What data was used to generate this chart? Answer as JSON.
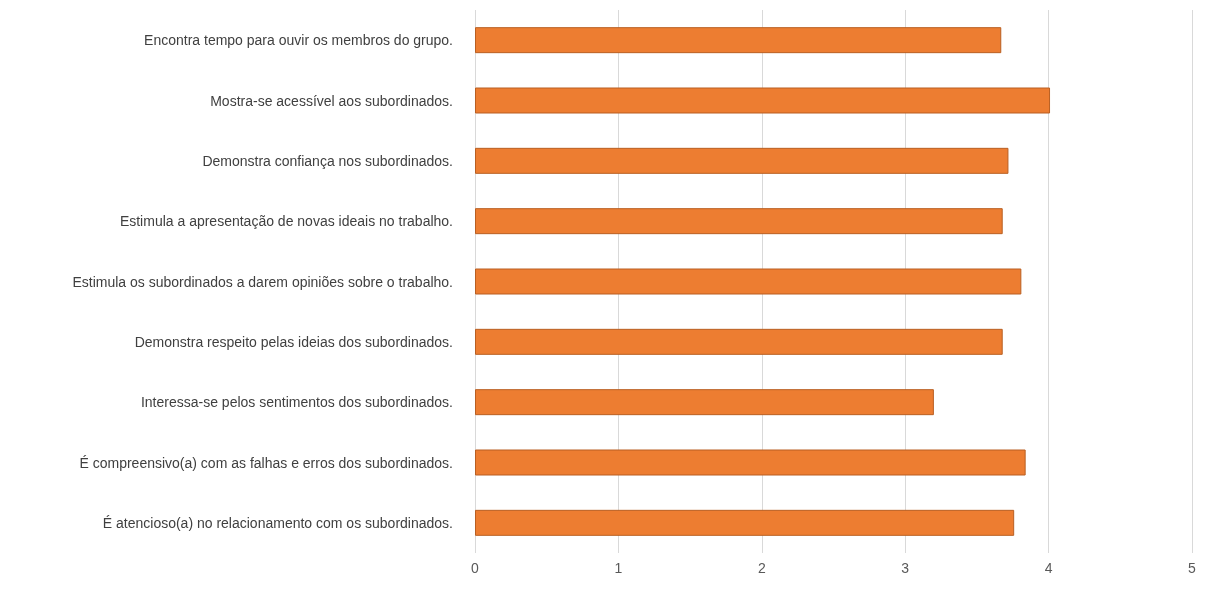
{
  "chart_data": {
    "type": "bar",
    "orientation": "horizontal",
    "categories": [
      "Encontra tempo para ouvir os membros do grupo.",
      "Mostra-se acessível aos subordinados.",
      "Demonstra confiança nos subordinados.",
      "Estimula a apresentação de novas ideais no trabalho.",
      "Estimula os subordinados a darem opiniões sobre o trabalho.",
      "Demonstra respeito pelas ideias dos subordinados.",
      "Interessa-se pelos sentimentos dos subordinados.",
      "É compreensivo(a) com as falhas e erros dos subordinados.",
      "É atencioso(a) no relacionamento com os subordinados."
    ],
    "values": [
      3.67,
      4.01,
      3.72,
      3.68,
      3.81,
      3.68,
      3.2,
      3.84,
      3.76
    ],
    "color": "#ed7d31",
    "xlim": [
      0,
      5
    ],
    "xticks": [
      0,
      1,
      2,
      3,
      4,
      5
    ],
    "grid": "x"
  }
}
